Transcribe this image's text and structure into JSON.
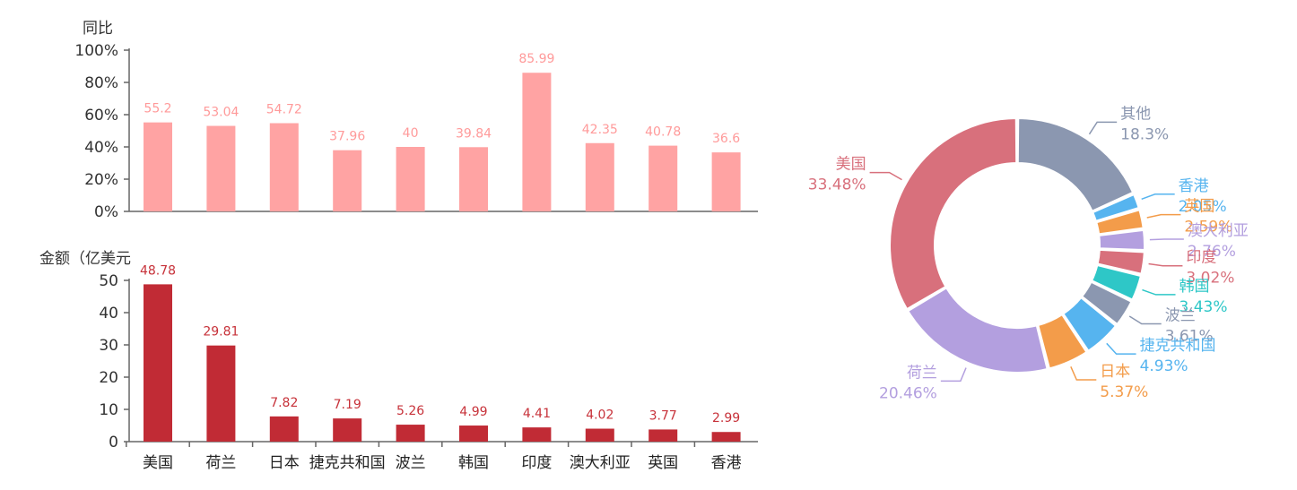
{
  "chart_data": [
    {
      "type": "bar",
      "ylabel": "同比",
      "yticks": [
        "0%",
        "20%",
        "40%",
        "60%",
        "80%",
        "100%"
      ],
      "ylim": [
        0,
        100
      ],
      "categories": [
        "美国",
        "荷兰",
        "日本",
        "捷克共和国",
        "波兰",
        "韩国",
        "印度",
        "澳大利亚",
        "英国",
        "香港"
      ],
      "values": [
        55.2,
        53.04,
        54.72,
        37.96,
        40,
        39.84,
        85.99,
        42.35,
        40.78,
        36.6
      ],
      "value_labels": [
        "55.2",
        "53.04",
        "54.72",
        "37.96",
        "40",
        "39.84",
        "85.99",
        "42.35",
        "40.78",
        "36.6"
      ],
      "color": "#ffa3a3"
    },
    {
      "type": "bar",
      "ylabel": "金额（亿美元",
      "yticks": [
        "0",
        "10",
        "20",
        "30",
        "40",
        "50"
      ],
      "ylim": [
        0,
        50
      ],
      "categories": [
        "美国",
        "荷兰",
        "日本",
        "捷克共和国",
        "波兰",
        "韩国",
        "印度",
        "澳大利亚",
        "英国",
        "香港"
      ],
      "values": [
        48.78,
        29.81,
        7.82,
        7.19,
        5.26,
        4.99,
        4.41,
        4.02,
        3.77,
        2.99
      ],
      "value_labels": [
        "48.78",
        "29.81",
        "7.82",
        "7.19",
        "5.26",
        "4.99",
        "4.41",
        "4.02",
        "3.77",
        "2.99"
      ],
      "color": "#c12b35"
    },
    {
      "type": "pie",
      "donut": true,
      "slices": [
        {
          "name": "其他",
          "value": 18.3,
          "label": "18.3%",
          "color": "#8b97b0"
        },
        {
          "name": "香港",
          "value": 2.05,
          "label": "2.05%",
          "color": "#56b4ef"
        },
        {
          "name": "英国",
          "value": 2.59,
          "label": "2.59%",
          "color": "#f39c4a"
        },
        {
          "name": "澳大利亚",
          "value": 2.76,
          "label": "2.76%",
          "color": "#b39fdf"
        },
        {
          "name": "印度",
          "value": 3.02,
          "label": "3.02%",
          "color": "#d8707c"
        },
        {
          "name": "韩国",
          "value": 3.43,
          "label": "3.43%",
          "color": "#2ec7c7"
        },
        {
          "name": "波兰",
          "value": 3.61,
          "label": "3.61%",
          "color": "#8b97b0"
        },
        {
          "name": "捷克共和国",
          "value": 4.93,
          "label": "4.93%",
          "color": "#56b4ef"
        },
        {
          "name": "日本",
          "value": 5.37,
          "label": "5.37%",
          "color": "#f39c4a"
        },
        {
          "name": "荷兰",
          "value": 20.46,
          "label": "20.46%",
          "color": "#b39fdf"
        },
        {
          "name": "美国",
          "value": 33.48,
          "label": "33.48%",
          "color": "#d8707c"
        }
      ]
    }
  ]
}
